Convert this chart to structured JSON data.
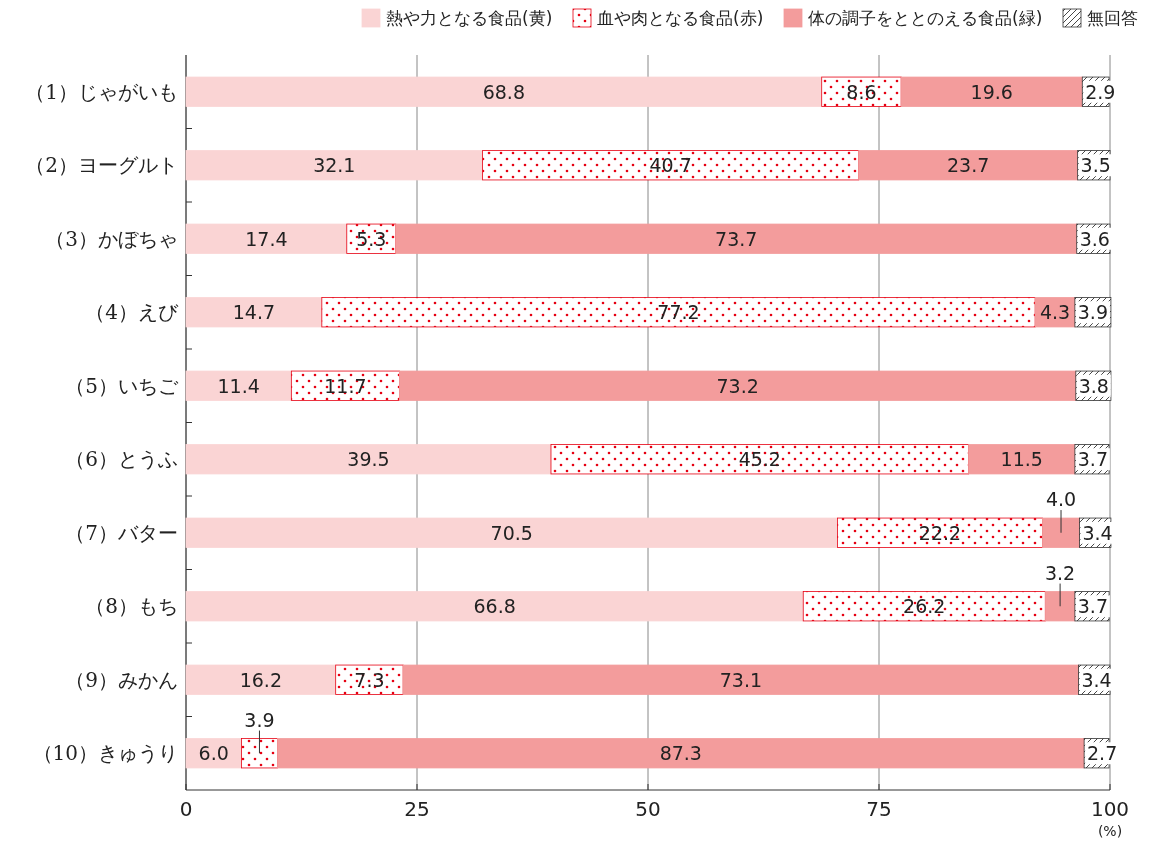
{
  "chart_data": {
    "type": "bar",
    "orientation": "horizontal",
    "stacked": true,
    "categories": [
      "（1）じゃがいも",
      "（2）ヨーグルト",
      "（3）かぼちゃ",
      "（4）えび",
      "（5）いちご",
      "（6）とうふ",
      "（7）バター",
      "（8）もち",
      "（9）みかん",
      "（10）きゅうり"
    ],
    "series": [
      {
        "name": "熱や力となる食品(黄)",
        "color": "#fad4d4",
        "values": [
          68.8,
          32.1,
          17.4,
          14.7,
          11.4,
          39.5,
          70.5,
          66.8,
          16.2,
          6.0
        ],
        "value_labels": [
          "68.8",
          "32.1",
          "17.4",
          "14.7",
          "11.4",
          "39.5",
          "70.5",
          "66.8",
          "16.2",
          "6.0"
        ]
      },
      {
        "name": "血や肉となる食品(赤)",
        "color": "#e60012",
        "values": [
          8.6,
          40.7,
          5.3,
          77.2,
          11.7,
          45.2,
          22.2,
          26.2,
          7.3,
          3.9
        ],
        "value_labels": [
          "8.6",
          "40.7",
          "5.3",
          "77.2",
          "11.7",
          "45.2",
          "22.2",
          "26.2",
          "7.3",
          "3.9"
        ]
      },
      {
        "name": "体の調子をととのえる食品(緑)",
        "color": "#f39c9c",
        "values": [
          19.6,
          23.7,
          73.7,
          4.3,
          73.2,
          11.5,
          4.0,
          3.2,
          73.1,
          87.3
        ],
        "value_labels": [
          "19.6",
          "23.7",
          "73.7",
          "4.3",
          "73.2",
          "11.5",
          "4.0",
          "3.2",
          "73.1",
          "87.3"
        ]
      },
      {
        "name": "無回答",
        "color": "#333333",
        "values": [
          2.9,
          3.5,
          3.6,
          3.9,
          3.8,
          3.7,
          3.4,
          3.7,
          3.4,
          2.7
        ],
        "value_labels": [
          "2.9",
          "3.5",
          "3.6",
          "3.9",
          "3.8",
          "3.7",
          "3.4",
          "3.7",
          "3.4",
          "2.7"
        ]
      }
    ],
    "xlim": [
      0,
      100
    ],
    "xticks": [
      0,
      25,
      50,
      75,
      100
    ],
    "xlabel": "(%)",
    "grid": "x",
    "legend": "top"
  }
}
